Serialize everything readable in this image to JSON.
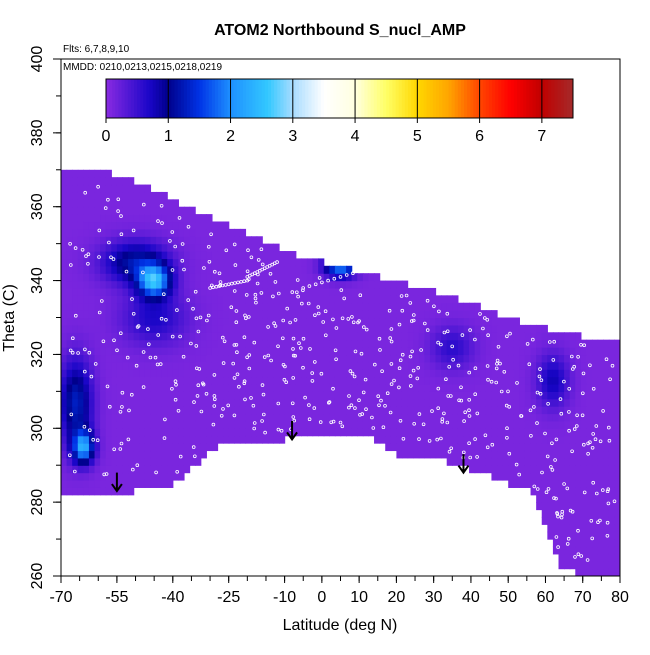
{
  "chart_data": {
    "type": "heatmap",
    "title": "ATOM2 Northbound S_nucl_AMP",
    "note_lines": [
      "Flts: 6,7,8,9,10",
      "MMDD: 0210,0213,0215,0218,0219"
    ],
    "xlabel": "Latitude (deg N)",
    "ylabel": "Theta (C)",
    "xlim": [
      -70,
      80
    ],
    "ylim": [
      260,
      400
    ],
    "x_ticks": [
      -70,
      -55,
      -40,
      -25,
      -10,
      0,
      10,
      20,
      30,
      40,
      50,
      60,
      70,
      80
    ],
    "y_ticks": [
      260,
      280,
      300,
      320,
      340,
      360,
      380,
      400
    ],
    "colorbar": {
      "range": [
        0,
        7.5
      ],
      "ticks": [
        0,
        1,
        2,
        3,
        4,
        5,
        6,
        7
      ],
      "stops": [
        {
          "v": 0.0,
          "c": "#8a2be2"
        },
        {
          "v": 0.7,
          "c": "#1a06c8"
        },
        {
          "v": 1.0,
          "c": "#00008b"
        },
        {
          "v": 1.5,
          "c": "#0033e6"
        },
        {
          "v": 2.0,
          "c": "#1e90ff"
        },
        {
          "v": 2.6,
          "c": "#33c8ff"
        },
        {
          "v": 3.0,
          "c": "#a8dcff"
        },
        {
          "v": 3.5,
          "c": "#ffffff"
        },
        {
          "v": 4.0,
          "c": "#ffffe0"
        },
        {
          "v": 4.5,
          "c": "#ffff66"
        },
        {
          "v": 5.0,
          "c": "#ffd700"
        },
        {
          "v": 5.5,
          "c": "#ffa500"
        },
        {
          "v": 6.0,
          "c": "#ff4500"
        },
        {
          "v": 6.5,
          "c": "#ff0000"
        },
        {
          "v": 7.0,
          "c": "#c00000"
        },
        {
          "v": 7.5,
          "c": "#a52a2a"
        }
      ]
    },
    "field": {
      "background_value": 0.1,
      "top_boundary": [
        [
          -66,
          370
        ],
        [
          -60,
          370
        ],
        [
          -50,
          367
        ],
        [
          -30,
          357
        ],
        [
          -10,
          348
        ],
        [
          0,
          345
        ],
        [
          20,
          340
        ],
        [
          40,
          334
        ],
        [
          55,
          328
        ],
        [
          65,
          326
        ],
        [
          80,
          323
        ]
      ],
      "bottom_boundary": [
        [
          80,
          260
        ],
        [
          72,
          260
        ],
        [
          64,
          262
        ],
        [
          56,
          285
        ],
        [
          50,
          285
        ],
        [
          40,
          289
        ],
        [
          30,
          292
        ],
        [
          20,
          293
        ],
        [
          10,
          299
        ],
        [
          0,
          298
        ],
        [
          -10,
          297
        ],
        [
          -20,
          296
        ],
        [
          -28,
          295
        ],
        [
          -40,
          285
        ],
        [
          -45,
          284
        ],
        [
          -55,
          282
        ],
        [
          -65,
          281
        ],
        [
          -67,
          276
        ],
        [
          -67,
          281
        ],
        [
          -68,
          288
        ],
        [
          -70,
          300
        ],
        [
          -70,
          368
        ],
        [
          -66,
          370
        ]
      ],
      "hotspots": [
        {
          "lat": -45,
          "theta": 340,
          "value": 2.2,
          "sigma_lat": 3,
          "sigma_theta": 3
        },
        {
          "lat": -50,
          "theta": 345,
          "value": 1.1,
          "sigma_lat": 6,
          "sigma_theta": 4
        },
        {
          "lat": 5,
          "theta": 344,
          "value": 1.9,
          "sigma_lat": 3,
          "sigma_theta": 2
        },
        {
          "lat": -66,
          "theta": 307,
          "value": 1.2,
          "sigma_lat": 3,
          "sigma_theta": 8
        },
        {
          "lat": -64,
          "theta": 295,
          "value": 2.0,
          "sigma_lat": 2,
          "sigma_theta": 3
        },
        {
          "lat": -45,
          "theta": 330,
          "value": 0.6,
          "sigma_lat": 6,
          "sigma_theta": 5
        },
        {
          "lat": 35,
          "theta": 322,
          "value": 0.5,
          "sigma_lat": 4,
          "sigma_theta": 4
        },
        {
          "lat": 62,
          "theta": 313,
          "value": 0.7,
          "sigma_lat": 3,
          "sigma_theta": 5
        }
      ]
    },
    "arrows": [
      {
        "lat": -55,
        "theta_start": 288,
        "theta_end": 283
      },
      {
        "lat": -8,
        "theta_start": 302,
        "theta_end": 297
      },
      {
        "lat": 38,
        "theta_start": 293,
        "theta_end": 288
      }
    ]
  }
}
